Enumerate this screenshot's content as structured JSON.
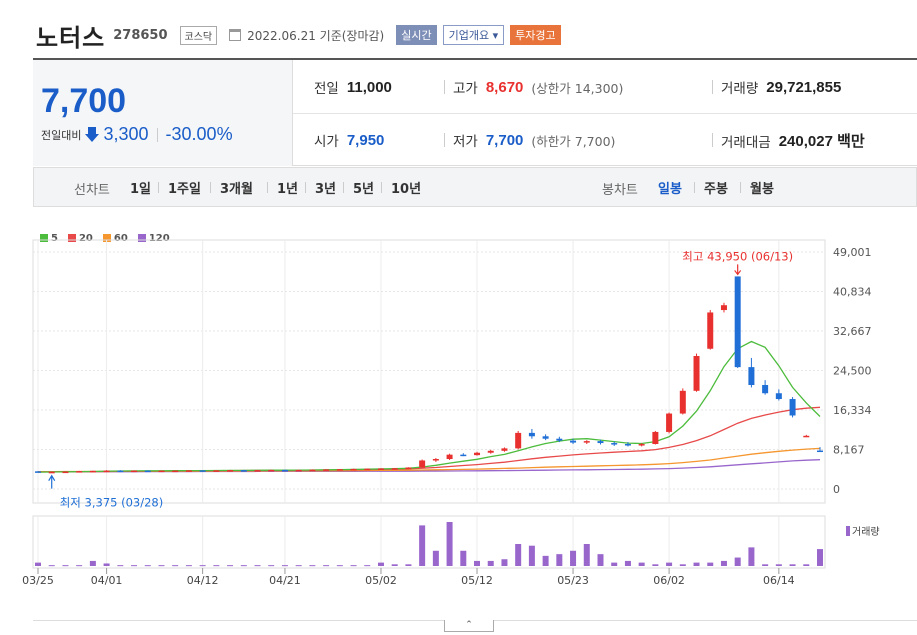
{
  "header": {
    "stock_name": "노터스",
    "stock_code": "278650",
    "market": "코스닥",
    "date_text": "2022.06.21 기준(장마감)",
    "btn_realtime": "실시간",
    "btn_company": "기업개요",
    "btn_warning": "투자경고"
  },
  "quote": {
    "price": "7,700",
    "diff_label": "전일대비",
    "diff_value": "3,300",
    "diff_pct": "-30.00%",
    "prev_label": "전일",
    "prev": "11,000",
    "high_label": "고가",
    "high": "8,670",
    "upper_limit": "(상한가 14,300)",
    "volume_label": "거래량",
    "volume": "29,721,855",
    "open_label": "시가",
    "open": "7,950",
    "low_label": "저가",
    "low": "7,700",
    "lower_limit": "(하한가 7,700)",
    "amount_label": "거래대금",
    "amount": "240,027 백만"
  },
  "periods": {
    "line_label": "선차트",
    "line_items": [
      "1일",
      "1주일",
      "3개월",
      "1년",
      "3년",
      "5년",
      "10년"
    ],
    "candle_label": "봉차트",
    "candle_items": [
      "일봉",
      "주봉",
      "월봉"
    ],
    "active_candle": "일봉"
  },
  "colors": {
    "up": "#e8312f",
    "down": "#1f6fd6",
    "ma5": "#4cbc3c",
    "ma20": "#e84a4a",
    "ma60": "#f5962e",
    "ma120": "#9966cc"
  },
  "chart_data": {
    "type": "candlestick",
    "legend": [
      "5",
      "20",
      "60",
      "120"
    ],
    "y_ticks": [
      "49,001",
      "40,834",
      "32,667",
      "24,500",
      "16,334",
      "8,167",
      "0"
    ],
    "ylim": [
      0,
      49001
    ],
    "x_ticks": [
      "03/25",
      "04/01",
      "04/12",
      "04/21",
      "05/02",
      "05/12",
      "05/23",
      "06/02",
      "06/14"
    ],
    "x_tick_index": [
      0,
      5,
      12,
      18,
      25,
      32,
      39,
      46,
      54
    ],
    "max_annotation": "최고 43,950 (06/13)",
    "min_annotation": "최저 3,375 (03/28)",
    "volume_label": "거래량",
    "candles": [
      [
        3650,
        3700,
        3450,
        3500
      ],
      [
        3500,
        3600,
        3375,
        3550
      ],
      [
        3550,
        3650,
        3500,
        3600
      ],
      [
        3600,
        3750,
        3550,
        3700
      ],
      [
        3700,
        3800,
        3650,
        3750
      ],
      [
        3750,
        3900,
        3700,
        3800
      ],
      [
        3800,
        3900,
        3700,
        3750
      ],
      [
        3750,
        3850,
        3700,
        3800
      ],
      [
        3800,
        3850,
        3700,
        3750
      ],
      [
        3750,
        3850,
        3700,
        3800
      ],
      [
        3800,
        3850,
        3750,
        3800
      ],
      [
        3800,
        3900,
        3750,
        3850
      ],
      [
        3850,
        3900,
        3750,
        3800
      ],
      [
        3800,
        3900,
        3750,
        3850
      ],
      [
        3850,
        3950,
        3800,
        3900
      ],
      [
        3900,
        3950,
        3800,
        3850
      ],
      [
        3850,
        3950,
        3800,
        3900
      ],
      [
        3900,
        4000,
        3850,
        3950
      ],
      [
        3950,
        4000,
        3850,
        3900
      ],
      [
        3900,
        4000,
        3850,
        3950
      ],
      [
        3950,
        4050,
        3900,
        4000
      ],
      [
        4000,
        4100,
        3950,
        4050
      ],
      [
        4050,
        4150,
        4000,
        4100
      ],
      [
        4100,
        4200,
        4050,
        4150
      ],
      [
        4150,
        4250,
        4100,
        4200
      ],
      [
        4200,
        4300,
        4150,
        4250
      ],
      [
        4250,
        4350,
        4200,
        4300
      ],
      [
        4300,
        4500,
        4250,
        4450
      ],
      [
        4450,
        6100,
        4400,
        5900
      ],
      [
        5900,
        6400,
        5600,
        6200
      ],
      [
        6200,
        7300,
        6000,
        7100
      ],
      [
        7100,
        7400,
        6800,
        7000
      ],
      [
        7000,
        7700,
        6900,
        7500
      ],
      [
        7500,
        8100,
        7300,
        7900
      ],
      [
        7900,
        8600,
        7700,
        8400
      ],
      [
        8400,
        12000,
        8200,
        11600
      ],
      [
        11600,
        12400,
        10400,
        10900
      ],
      [
        10900,
        11300,
        10100,
        10400
      ],
      [
        10400,
        10800,
        9700,
        10000
      ],
      [
        10000,
        10400,
        9300,
        9600
      ],
      [
        9600,
        10100,
        9300,
        9900
      ],
      [
        9900,
        10200,
        9200,
        9500
      ],
      [
        9500,
        9800,
        8900,
        9300
      ],
      [
        9300,
        9700,
        8800,
        9100
      ],
      [
        9100,
        9500,
        8800,
        9300
      ],
      [
        9300,
        12000,
        9200,
        11800
      ],
      [
        11800,
        15800,
        11500,
        15600
      ],
      [
        15600,
        20800,
        15400,
        20300
      ],
      [
        20300,
        28000,
        20100,
        27500
      ],
      [
        29000,
        37000,
        28800,
        36500
      ],
      [
        37000,
        38500,
        36500,
        38000
      ],
      [
        43950,
        43950,
        25000,
        25200
      ],
      [
        25200,
        27100,
        21000,
        21500
      ],
      [
        21500,
        22500,
        19500,
        19800
      ],
      [
        19800,
        20600,
        18300,
        18600
      ],
      [
        18600,
        19000,
        14800,
        15200
      ],
      [
        11000,
        11200,
        10800,
        11000
      ],
      [
        7950,
        8670,
        7700,
        7700
      ]
    ],
    "ma5": [
      3500,
      3520,
      3550,
      3600,
      3620,
      3680,
      3720,
      3750,
      3760,
      3770,
      3780,
      3800,
      3810,
      3820,
      3840,
      3850,
      3860,
      3880,
      3890,
      3900,
      3930,
      3960,
      4000,
      4050,
      4100,
      4150,
      4200,
      4270,
      4550,
      4900,
      5350,
      5750,
      6150,
      6700,
      7150,
      7900,
      8700,
      9400,
      9900,
      10300,
      10400,
      10100,
      9800,
      9500,
      9400,
      9800,
      10800,
      13000,
      16100,
      20300,
      25300,
      29000,
      30500,
      29300,
      25500,
      21000,
      17800,
      15000
    ],
    "ma20": [
      3520,
      3540,
      3560,
      3580,
      3600,
      3620,
      3640,
      3660,
      3680,
      3700,
      3720,
      3740,
      3760,
      3780,
      3800,
      3820,
      3840,
      3860,
      3870,
      3880,
      3900,
      3920,
      3950,
      3980,
      4010,
      4050,
      4100,
      4150,
      4300,
      4450,
      4650,
      4850,
      5050,
      5300,
      5550,
      5900,
      6250,
      6550,
      6800,
      7050,
      7250,
      7450,
      7600,
      7750,
      7900,
      8150,
      8600,
      9200,
      10000,
      11000,
      12300,
      13600,
      14600,
      15300,
      15900,
      16400,
      16700,
      16900
    ],
    "ma60": [
      3600,
      3605,
      3610,
      3615,
      3620,
      3625,
      3630,
      3640,
      3650,
      3660,
      3670,
      3680,
      3690,
      3700,
      3710,
      3720,
      3730,
      3740,
      3750,
      3760,
      3770,
      3780,
      3790,
      3800,
      3820,
      3840,
      3860,
      3880,
      3920,
      3960,
      4010,
      4060,
      4120,
      4180,
      4250,
      4330,
      4420,
      4500,
      4580,
      4650,
      4720,
      4790,
      4850,
      4920,
      5000,
      5100,
      5250,
      5450,
      5700,
      6000,
      6400,
      6800,
      7200,
      7500,
      7800,
      8050,
      8250,
      8400
    ],
    "ma120": [
      3550,
      3555,
      3560,
      3565,
      3570,
      3575,
      3580,
      3585,
      3590,
      3595,
      3600,
      3605,
      3610,
      3615,
      3620,
      3625,
      3630,
      3635,
      3640,
      3645,
      3650,
      3655,
      3660,
      3665,
      3670,
      3675,
      3680,
      3690,
      3700,
      3710,
      3730,
      3750,
      3770,
      3790,
      3810,
      3830,
      3860,
      3890,
      3920,
      3950,
      3980,
      4010,
      4040,
      4070,
      4100,
      4150,
      4220,
      4320,
      4450,
      4600,
      4800,
      5000,
      5200,
      5400,
      5600,
      5800,
      5950,
      6050
    ],
    "volume": [
      4,
      1,
      1,
      1,
      6,
      3,
      1,
      1,
      1,
      1,
      1,
      1,
      1,
      1,
      1,
      1,
      1,
      1,
      1,
      1,
      1,
      1,
      1,
      1,
      1,
      4,
      2,
      2,
      48,
      18,
      52,
      18,
      6,
      6,
      8,
      26,
      24,
      12,
      14,
      18,
      26,
      14,
      4,
      6,
      4,
      2,
      4,
      2,
      4,
      4,
      6,
      10,
      22,
      2,
      2,
      2,
      2,
      20
    ]
  }
}
